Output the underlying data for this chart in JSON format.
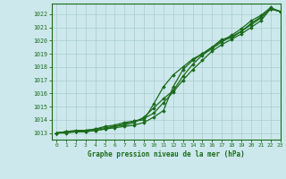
{
  "title": "Graphe pression niveau de la mer (hPa)",
  "bg_color": "#cce8ec",
  "grid_color": "#aacccc",
  "line_color": "#1a6b1a",
  "xlim": [
    -0.5,
    23
  ],
  "ylim": [
    1012.5,
    1022.8
  ],
  "yticks": [
    1013,
    1014,
    1015,
    1016,
    1017,
    1018,
    1019,
    1020,
    1021,
    1022
  ],
  "xticks": [
    0,
    1,
    2,
    3,
    4,
    5,
    6,
    7,
    8,
    9,
    10,
    11,
    12,
    13,
    14,
    15,
    16,
    17,
    18,
    19,
    20,
    21,
    22,
    23
  ],
  "series": [
    [
      1013.0,
      1013.1,
      1013.2,
      1013.2,
      1013.3,
      1013.5,
      1013.6,
      1013.8,
      1013.9,
      1014.1,
      1014.5,
      1015.3,
      1016.1,
      1017.0,
      1017.8,
      1018.5,
      1019.2,
      1019.7,
      1020.1,
      1020.5,
      1021.0,
      1021.5,
      1022.4,
      1022.2
    ],
    [
      1013.0,
      1013.1,
      1013.1,
      1013.2,
      1013.3,
      1013.4,
      1013.5,
      1013.7,
      1013.9,
      1014.0,
      1015.2,
      1016.5,
      1017.4,
      1018.0,
      1018.6,
      1019.0,
      1019.5,
      1020.0,
      1020.4,
      1020.9,
      1021.5,
      1021.9,
      1022.5,
      1022.2
    ],
    [
      1013.0,
      1013.1,
      1013.1,
      1013.1,
      1013.2,
      1013.3,
      1013.4,
      1013.5,
      1013.6,
      1013.8,
      1014.2,
      1014.7,
      1016.5,
      1017.8,
      1018.5,
      1019.0,
      1019.5,
      1020.1,
      1020.2,
      1020.7,
      1021.3,
      1021.8,
      1022.4,
      1022.2
    ],
    [
      1013.0,
      1013.0,
      1013.1,
      1013.1,
      1013.2,
      1013.3,
      1013.5,
      1013.6,
      1013.8,
      1014.2,
      1014.9,
      1015.6,
      1016.2,
      1017.3,
      1018.2,
      1018.9,
      1019.4,
      1019.9,
      1020.3,
      1020.7,
      1021.2,
      1021.7,
      1022.4,
      1022.2
    ]
  ]
}
